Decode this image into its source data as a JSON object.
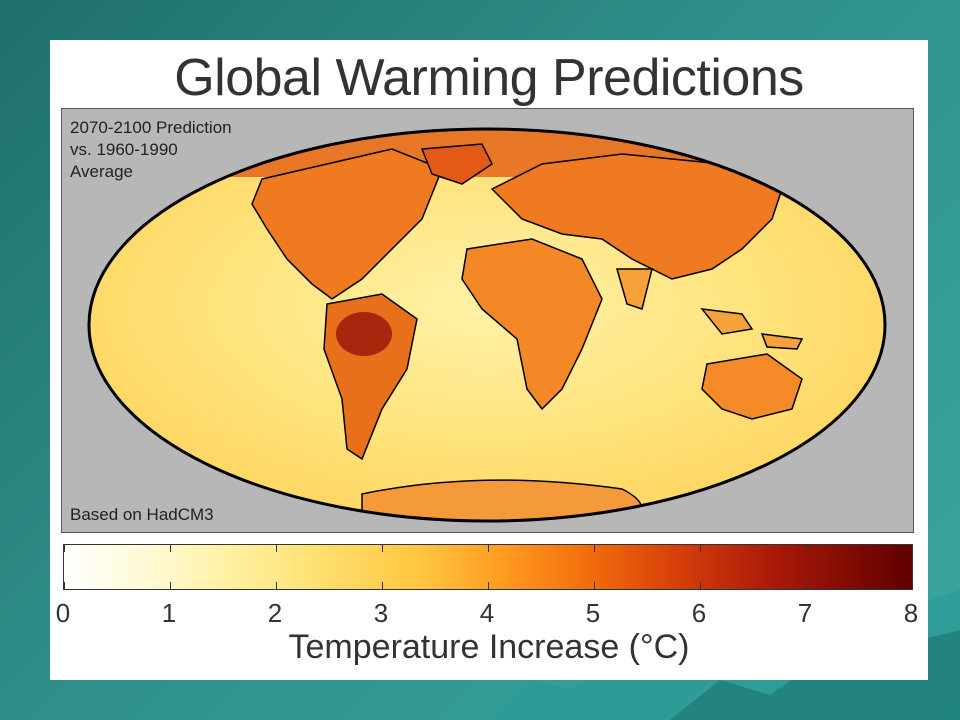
{
  "title": "Global Warming Predictions",
  "period_label": [
    "2070-2100 Prediction",
    "vs. 1960-1990",
    "Average"
  ],
  "model_label": "Based on HadCM3",
  "legend": {
    "title": "Temperature Increase (°C)",
    "ticks": [
      "0",
      "1",
      "2",
      "3",
      "4",
      "5",
      "6",
      "7",
      "8"
    ],
    "min": 0,
    "max": 8,
    "colors": [
      "#ffffff",
      "#fff8c8",
      "#ffe070",
      "#ffc640",
      "#ff9a20",
      "#f26c0c",
      "#d8400a",
      "#a81808",
      "#600000"
    ]
  },
  "colors": {
    "background": "#2f8f8a",
    "map_frame": "#b7b7b7",
    "ocean": "#ffe27a",
    "land_warm": "#f7941d",
    "land_hot": "#c1272d"
  }
}
